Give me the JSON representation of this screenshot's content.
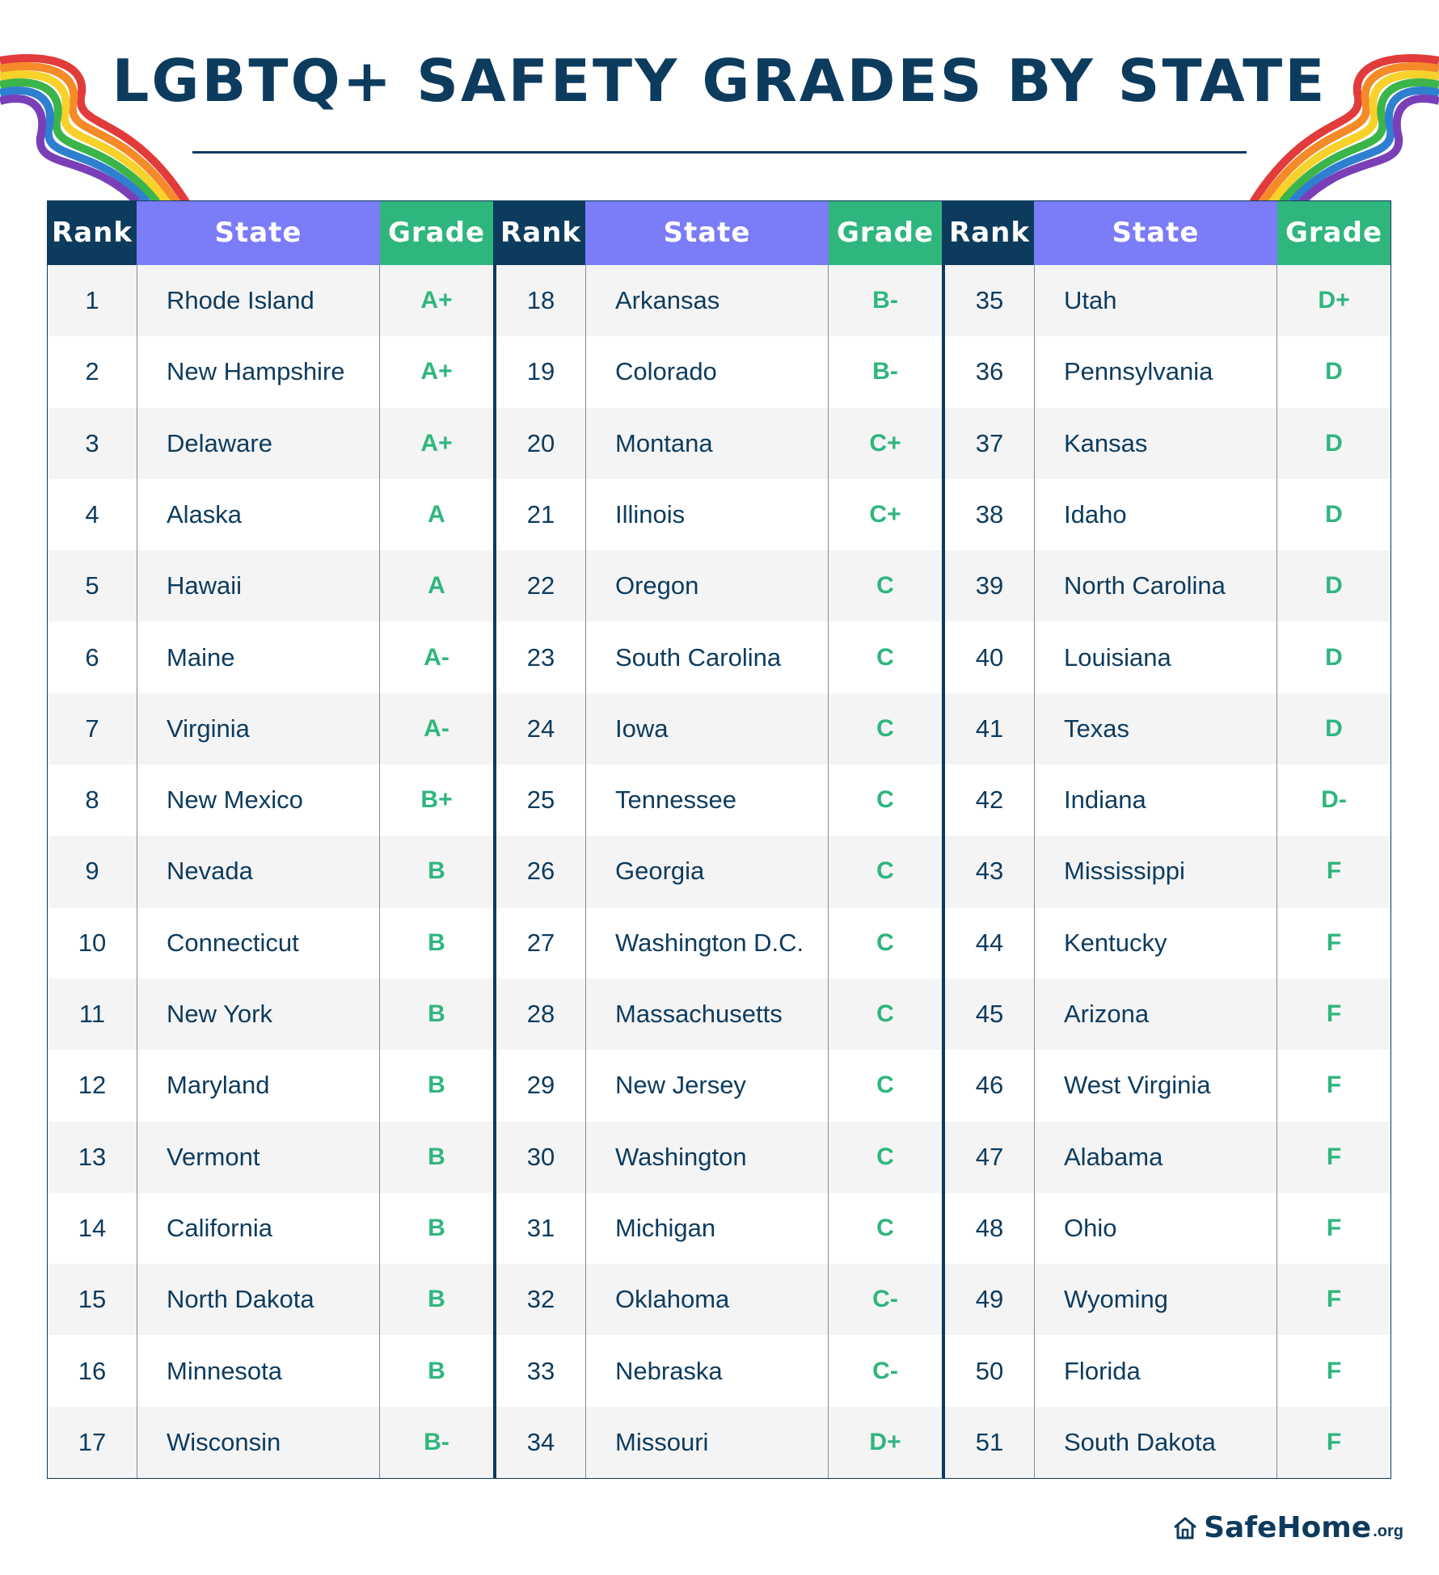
{
  "title": "LGBTQ+ SAFETY GRADES BY STATE",
  "colors": {
    "navy": "#0d3b5e",
    "purple": "#7b7cf7",
    "green": "#2fb67c"
  },
  "headers": {
    "rank": "Rank",
    "state": "State",
    "grade": "Grade"
  },
  "blocks": [
    {
      "rows": [
        {
          "rank": "1",
          "state": "Rhode Island",
          "grade": "A+"
        },
        {
          "rank": "2",
          "state": "New Hampshire",
          "grade": "A+"
        },
        {
          "rank": "3",
          "state": "Delaware",
          "grade": "A+"
        },
        {
          "rank": "4",
          "state": "Alaska",
          "grade": "A"
        },
        {
          "rank": "5",
          "state": "Hawaii",
          "grade": "A"
        },
        {
          "rank": "6",
          "state": "Maine",
          "grade": "A-"
        },
        {
          "rank": "7",
          "state": "Virginia",
          "grade": "A-"
        },
        {
          "rank": "8",
          "state": "New Mexico",
          "grade": "B+"
        },
        {
          "rank": "9",
          "state": "Nevada",
          "grade": "B"
        },
        {
          "rank": "10",
          "state": "Connecticut",
          "grade": "B"
        },
        {
          "rank": "11",
          "state": "New York",
          "grade": "B"
        },
        {
          "rank": "12",
          "state": "Maryland",
          "grade": "B"
        },
        {
          "rank": "13",
          "state": "Vermont",
          "grade": "B"
        },
        {
          "rank": "14",
          "state": "California",
          "grade": "B"
        },
        {
          "rank": "15",
          "state": "North Dakota",
          "grade": "B"
        },
        {
          "rank": "16",
          "state": "Minnesota",
          "grade": "B"
        },
        {
          "rank": "17",
          "state": "Wisconsin",
          "grade": "B-"
        }
      ]
    },
    {
      "rows": [
        {
          "rank": "18",
          "state": "Arkansas",
          "grade": "B-"
        },
        {
          "rank": "19",
          "state": "Colorado",
          "grade": "B-"
        },
        {
          "rank": "20",
          "state": "Montana",
          "grade": "C+"
        },
        {
          "rank": "21",
          "state": "Illinois",
          "grade": "C+"
        },
        {
          "rank": "22",
          "state": "Oregon",
          "grade": "C"
        },
        {
          "rank": "23",
          "state": "South Carolina",
          "grade": "C"
        },
        {
          "rank": "24",
          "state": "Iowa",
          "grade": "C"
        },
        {
          "rank": "25",
          "state": "Tennessee",
          "grade": "C"
        },
        {
          "rank": "26",
          "state": "Georgia",
          "grade": "C"
        },
        {
          "rank": "27",
          "state": "Washington D.C.",
          "grade": "C"
        },
        {
          "rank": "28",
          "state": "Massachusetts",
          "grade": "C"
        },
        {
          "rank": "29",
          "state": "New Jersey",
          "grade": "C"
        },
        {
          "rank": "30",
          "state": "Washington",
          "grade": "C"
        },
        {
          "rank": "31",
          "state": "Michigan",
          "grade": "C"
        },
        {
          "rank": "32",
          "state": "Oklahoma",
          "grade": "C-"
        },
        {
          "rank": "33",
          "state": "Nebraska",
          "grade": "C-"
        },
        {
          "rank": "34",
          "state": "Missouri",
          "grade": "D+"
        }
      ]
    },
    {
      "rows": [
        {
          "rank": "35",
          "state": "Utah",
          "grade": "D+"
        },
        {
          "rank": "36",
          "state": "Pennsylvania",
          "grade": "D"
        },
        {
          "rank": "37",
          "state": "Kansas",
          "grade": "D"
        },
        {
          "rank": "38",
          "state": "Idaho",
          "grade": "D"
        },
        {
          "rank": "39",
          "state": "North Carolina",
          "grade": "D"
        },
        {
          "rank": "40",
          "state": "Louisiana",
          "grade": "D"
        },
        {
          "rank": "41",
          "state": "Texas",
          "grade": "D"
        },
        {
          "rank": "42",
          "state": "Indiana",
          "grade": "D-"
        },
        {
          "rank": "43",
          "state": "Mississippi",
          "grade": "F"
        },
        {
          "rank": "44",
          "state": "Kentucky",
          "grade": "F"
        },
        {
          "rank": "45",
          "state": "Arizona",
          "grade": "F"
        },
        {
          "rank": "46",
          "state": "West Virginia",
          "grade": "F"
        },
        {
          "rank": "47",
          "state": "Alabama",
          "grade": "F"
        },
        {
          "rank": "48",
          "state": "Ohio",
          "grade": "F"
        },
        {
          "rank": "49",
          "state": "Wyoming",
          "grade": "F"
        },
        {
          "rank": "50",
          "state": "Florida",
          "grade": "F"
        },
        {
          "rank": "51",
          "state": "South Dakota",
          "grade": "F"
        }
      ]
    }
  ],
  "logo": {
    "name": "SafeHome",
    "tld": ".org",
    "icon": "house-icon"
  }
}
